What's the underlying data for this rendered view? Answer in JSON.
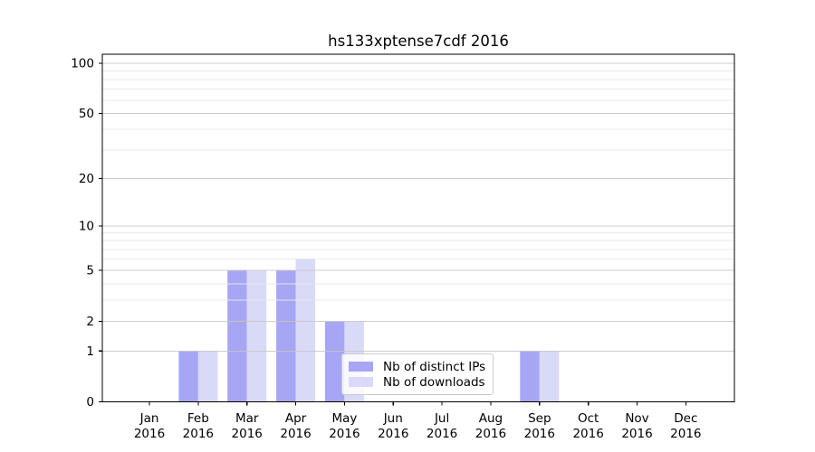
{
  "figure": {
    "background": "#ffffff"
  },
  "chart_data": {
    "type": "bar",
    "title": "hs133xptense7cdf 2016",
    "categories": [
      "Jan",
      "Feb",
      "Mar",
      "Apr",
      "May",
      "Jun",
      "Jul",
      "Aug",
      "Sep",
      "Oct",
      "Nov",
      "Dec"
    ],
    "category_year": "2016",
    "series": [
      {
        "name": "Nb of distinct IPs",
        "color": "#a6a6f5",
        "values": [
          0,
          1,
          5,
          5,
          2,
          0,
          0,
          0,
          1,
          0,
          0,
          0
        ]
      },
      {
        "name": "Nb of downloads",
        "color": "#d9d9f8",
        "values": [
          0,
          1,
          5,
          6,
          2,
          0,
          0,
          0,
          1,
          0,
          0,
          0
        ]
      }
    ],
    "xlabel": "",
    "ylabel": "",
    "yscale": "log1p",
    "ylim": [
      0,
      113
    ],
    "yticks": [
      0,
      1,
      2,
      5,
      10,
      20,
      50,
      100
    ],
    "minor_yticks": [
      3,
      4,
      6,
      7,
      8,
      9,
      30,
      40,
      60,
      70,
      80,
      90
    ],
    "grid": "on",
    "legend_position": "lower center",
    "colors": {
      "spine": "#000000",
      "tick_text": "#000000",
      "major_grid": "#c6c6c6",
      "minor_grid": "#e8e8e8",
      "legend_border": "#cccccc"
    }
  }
}
